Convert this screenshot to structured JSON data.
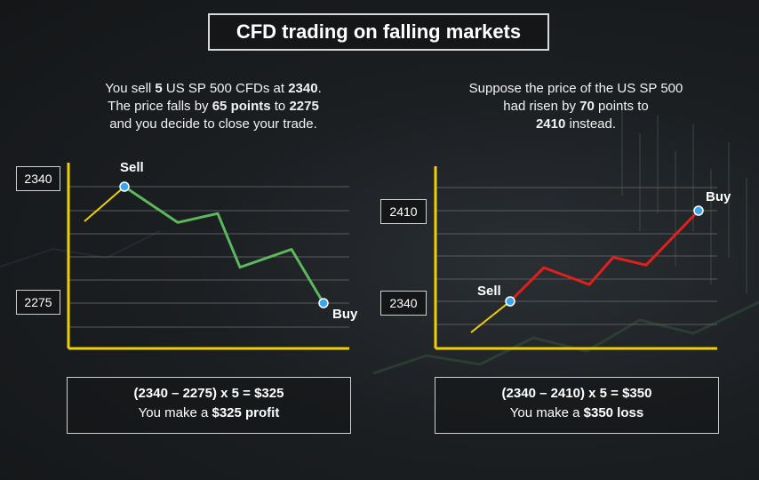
{
  "title": "CFD trading on falling markets",
  "left": {
    "text": {
      "l1_pre": "You sell ",
      "l1_qty": "5",
      "l1_mid": " US SP 500 CFDs at ",
      "l1_price": "2340",
      "l1_end": ".",
      "l2_pre": "The price falls by ",
      "l2_points": "65 points",
      "l2_mid": " to ",
      "l2_price": "2275",
      "l3": "and you decide to close your trade."
    },
    "upper_value": "2340",
    "lower_value": "2275",
    "sell_label": "Sell",
    "buy_label": "Buy",
    "result_equation": "(2340 – 2275) x 5 = $325",
    "result_pre": "You make a ",
    "result_bold": "$325 profit"
  },
  "right": {
    "text": {
      "l1": "Suppose the price of the US SP 500",
      "l2_pre": "had risen by ",
      "l2_points": "70",
      "l2_end": " points to",
      "l3_price": "2410",
      "l3_end": " instead."
    },
    "upper_value": "2410",
    "lower_value": "2340",
    "sell_label": "Sell",
    "buy_label": "Buy",
    "result_equation": "(2340 – 2410) x 5 = $350",
    "result_pre": "You make a ",
    "result_bold": "$350 loss"
  },
  "colors": {
    "axis": "#f0d000",
    "fall_line": "#5cb85c",
    "rise_line": "#e0201c",
    "lead_in": "#f0d000",
    "marker": "#3aa6f0"
  },
  "chart_data": [
    {
      "type": "line",
      "title": "",
      "series": [
        {
          "name": "",
          "values": [
            2340,
            2320,
            2325,
            2295,
            2305,
            2275
          ]
        }
      ],
      "sell_value": 2340,
      "buy_value": 2275
    },
    {
      "type": "line",
      "title": "",
      "series": [
        {
          "name": "",
          "values": [
            2340,
            2366,
            2353,
            2374,
            2368,
            2410
          ]
        }
      ],
      "sell_value": 2340,
      "buy_value": 2410
    }
  ]
}
